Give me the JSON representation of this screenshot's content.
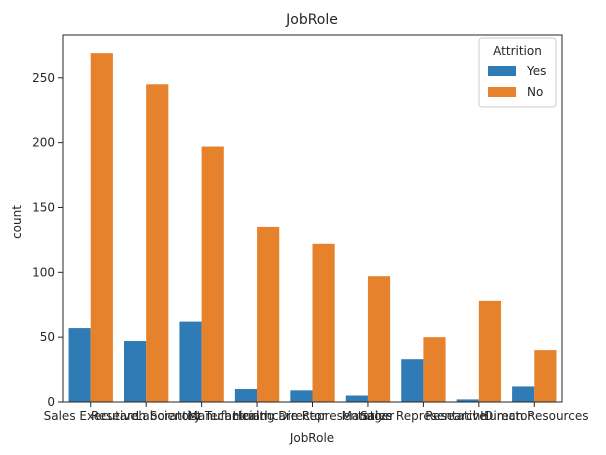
{
  "chart_data": {
    "type": "bar",
    "title": "JobRole",
    "xlabel": "JobRole",
    "ylabel": "count",
    "ylim": [
      0,
      283
    ],
    "yticks": [
      0,
      50,
      100,
      150,
      200,
      250
    ],
    "grid": false,
    "legend_title": "Attrition",
    "legend_position": "top-right",
    "categories": [
      "Sales Executive",
      "Research Scientist",
      "Laboratory Technician",
      "Manufacturing Director",
      "Healthcare Representative",
      "Manager",
      "Sales Representative",
      "Research Director",
      "Human Resources"
    ],
    "series": [
      {
        "name": "Yes",
        "color": "#2f7bb5",
        "values": [
          57,
          47,
          62,
          10,
          9,
          5,
          33,
          2,
          12
        ]
      },
      {
        "name": "No",
        "color": "#e6812c",
        "values": [
          269,
          245,
          197,
          135,
          122,
          97,
          50,
          78,
          40
        ]
      }
    ]
  }
}
